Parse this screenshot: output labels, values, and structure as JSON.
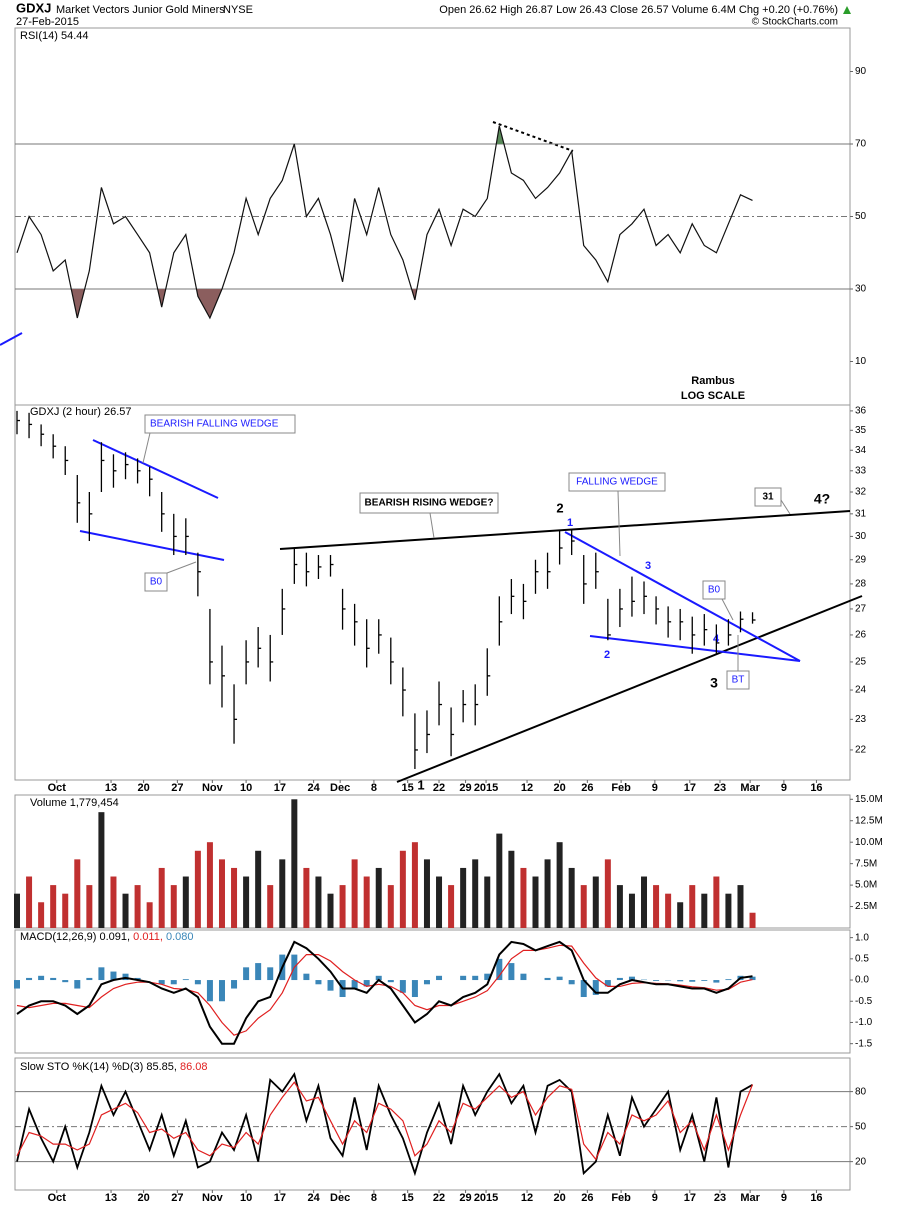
{
  "header": {
    "symbol": "GDXJ",
    "name": "Market Vectors Junior Gold Miners",
    "exchange": "NYSE",
    "date": "27-Feb-2015",
    "quote": "Open 26.62  High 26.87  Low 26.43  Close 26.57  Volume 6.4M  Chg +0.20 (+0.76%)",
    "source": "© StockCharts.com"
  },
  "chart_data": [
    {
      "type": "line",
      "title": "RSI(14) 54.44",
      "annotations": [
        "Rambus",
        "LOG SCALE"
      ],
      "color": "#111111",
      "values": [
        40,
        50,
        45,
        35,
        38,
        22,
        35,
        58,
        48,
        50,
        45,
        40,
        25,
        40,
        45,
        28,
        22,
        30,
        40,
        55,
        45,
        55,
        60,
        70,
        50,
        55,
        45,
        32,
        55,
        45,
        58,
        45,
        38,
        27,
        45,
        52,
        42,
        52,
        50,
        55,
        75,
        62,
        60,
        55,
        58,
        62,
        68,
        42,
        38,
        32,
        45,
        48,
        52,
        42,
        45,
        40,
        48,
        42,
        40,
        48,
        56,
        54.44
      ],
      "xlim": [
        0,
        69
      ],
      "ylim": [
        -2,
        102
      ],
      "yticks": [
        10,
        30,
        50,
        70,
        90
      ],
      "reference_lines": [
        30,
        50,
        70
      ],
      "reference_styles": [
        "solid",
        "dashdot",
        "solid"
      ],
      "overbought_color": "#5a8a5a",
      "oversold_color": "#8b5e5e"
    },
    {
      "type": "hlc",
      "title": "GDXJ (2 hour) 26.57",
      "log_scale": true,
      "color": "#000000",
      "high": [
        36,
        35.9,
        35.3,
        34.8,
        34.2,
        32.8,
        32,
        34.4,
        33.8,
        33.9,
        33.6,
        33.2,
        32,
        31,
        30.8,
        29.3,
        27,
        25.6,
        24.2,
        25.8,
        26.3,
        26,
        27.8,
        29.5,
        29.3,
        29.2,
        29.2,
        27.8,
        27.2,
        26.6,
        26.6,
        25.9,
        24.8,
        23.2,
        23.3,
        24.3,
        23.4,
        24,
        24.2,
        25.5,
        27.5,
        28.2,
        28,
        29,
        29.3,
        30.3,
        30.3,
        29.2,
        29.3,
        27.4,
        27.8,
        28.3,
        28.1,
        27.5,
        27.1,
        27,
        26.7,
        26.8,
        26.4,
        26.6,
        26.9,
        26.87
      ],
      "low": [
        34.8,
        34.6,
        34.2,
        33.6,
        32.8,
        30.6,
        29.8,
        32,
        32.2,
        32.6,
        32.4,
        31.8,
        30.2,
        29.2,
        29.2,
        27.5,
        24.2,
        23.4,
        22.2,
        24.2,
        24.8,
        24.3,
        26,
        28,
        27.9,
        28.2,
        28.3,
        26.2,
        25.6,
        24.8,
        25.3,
        24.2,
        23.1,
        21.4,
        21.9,
        22.8,
        21.8,
        22.9,
        22.8,
        23.8,
        25.6,
        26.8,
        26.6,
        27.6,
        27.8,
        28.8,
        29.2,
        27.2,
        27.8,
        25.8,
        26.3,
        26.7,
        26.8,
        26.4,
        25.9,
        25.8,
        25.3,
        25.6,
        25.3,
        25.6,
        26.1,
        26.43
      ],
      "close": [
        35.5,
        35.3,
        34.8,
        34.2,
        33.5,
        31.5,
        31,
        33.5,
        33,
        33.3,
        33,
        32.6,
        31,
        30,
        30,
        28.5,
        25,
        24.5,
        23,
        25,
        25.5,
        25,
        27,
        28.8,
        28.5,
        28.7,
        28.8,
        27,
        26.5,
        25.5,
        26,
        25,
        24,
        22,
        22.5,
        23.5,
        22.5,
        23.5,
        23.5,
        24.5,
        26.5,
        27.5,
        27.3,
        28.5,
        28.5,
        29.5,
        29.8,
        28,
        28.5,
        26,
        27,
        27.3,
        27.5,
        27,
        26.5,
        26.5,
        26,
        26.2,
        25.7,
        26,
        26.6,
        26.57
      ],
      "xlim": [
        0,
        69
      ],
      "ylim": [
        21.06,
        36.31
      ],
      "yticks": [
        22,
        23,
        24,
        25,
        26,
        27,
        28,
        29,
        30,
        31,
        32,
        33,
        34,
        35,
        36
      ],
      "xticks": [
        {
          "value": 3.3,
          "label": "Oct"
        },
        {
          "value": 7.8,
          "label": "13"
        },
        {
          "value": 10.5,
          "label": "20"
        },
        {
          "value": 13.3,
          "label": "27"
        },
        {
          "value": 16.2,
          "label": "Nov"
        },
        {
          "value": 19,
          "label": "10"
        },
        {
          "value": 21.8,
          "label": "17"
        },
        {
          "value": 24.6,
          "label": "24"
        },
        {
          "value": 26.8,
          "label": "Dec"
        },
        {
          "value": 29.6,
          "label": "8"
        },
        {
          "value": 32.4,
          "label": "15"
        },
        {
          "value": 35,
          "label": "22"
        },
        {
          "value": 37.2,
          "label": "29"
        },
        {
          "value": 38.9,
          "label": "2015"
        },
        {
          "value": 42.3,
          "label": "12"
        },
        {
          "value": 45,
          "label": "20"
        },
        {
          "value": 47.3,
          "label": "26"
        },
        {
          "value": 50.1,
          "label": "Feb"
        },
        {
          "value": 52.9,
          "label": "9"
        },
        {
          "value": 55.8,
          "label": "17"
        },
        {
          "value": 58.3,
          "label": "23"
        },
        {
          "value": 60.8,
          "label": "Mar"
        },
        {
          "value": 63.6,
          "label": "9"
        },
        {
          "value": 66.3,
          "label": "16"
        }
      ],
      "annotations": [
        "BEARISH FALLING WEDGE",
        "B0",
        "BEARISH RISING WEDGE?",
        "FALLING WEDGE",
        "B0",
        "BT",
        "31",
        "4?",
        "2",
        "1",
        "3",
        "2",
        "4",
        "3",
        "1"
      ]
    },
    {
      "type": "bar",
      "title": "Volume 1,779,454",
      "up_color": "#222222",
      "down_color": "#c03030",
      "values": [
        4000000,
        6000000,
        3000000,
        5000000,
        4000000,
        8000000,
        5000000,
        13500000,
        6000000,
        4000000,
        5000000,
        3000000,
        7000000,
        5000000,
        6000000,
        9000000,
        10000000,
        8000000,
        7000000,
        6000000,
        9000000,
        5000000,
        8000000,
        15000000,
        7000000,
        6000000,
        4000000,
        5000000,
        8000000,
        6000000,
        7000000,
        5000000,
        9000000,
        10000000,
        8000000,
        6000000,
        5000000,
        7000000,
        8000000,
        6000000,
        11000000,
        9000000,
        7000000,
        6000000,
        8000000,
        10000000,
        7000000,
        5000000,
        6000000,
        8000000,
        5000000,
        4000000,
        6000000,
        5000000,
        4000000,
        3000000,
        5000000,
        4000000,
        6000000,
        4000000,
        5000000,
        1779454
      ],
      "xlim": [
        0,
        69
      ],
      "ylim": [
        0,
        15500000
      ],
      "yticks": [
        {
          "value": 2500000,
          "label": "2.5M"
        },
        {
          "value": 5000000,
          "label": "5.0M"
        },
        {
          "value": 7500000,
          "label": "7.5M"
        },
        {
          "value": 10000000,
          "label": "10.0M"
        },
        {
          "value": 12500000,
          "label": "12.5M"
        },
        {
          "value": 15000000,
          "label": "15.0M"
        }
      ]
    },
    {
      "type": "macd",
      "title": "MACD(12,26,9)",
      "legend_texts": [
        "0.091,",
        "0.011,",
        "0.080"
      ],
      "macd_color": "#000000",
      "signal_color": "#e02020",
      "histogram_color": "#3a86b8",
      "macd": [
        -0.8,
        -0.6,
        -0.5,
        -0.5,
        -0.6,
        -0.8,
        -0.6,
        -0.1,
        0,
        0.05,
        0,
        -0.05,
        -0.2,
        -0.3,
        -0.2,
        -0.4,
        -1.1,
        -1.5,
        -1.5,
        -0.9,
        -0.5,
        -0.4,
        0.3,
        0.9,
        0.75,
        0.5,
        0.2,
        -0.2,
        -0.2,
        -0.3,
        0,
        -0.2,
        -0.6,
        -1.0,
        -0.8,
        -0.5,
        -0.6,
        -0.4,
        -0.3,
        -0.1,
        0.6,
        0.9,
        0.85,
        0.7,
        0.8,
        0.9,
        0.7,
        0,
        -0.3,
        -0.3,
        -0.1,
        0,
        -0.05,
        -0.1,
        -0.1,
        -0.15,
        -0.2,
        -0.2,
        -0.3,
        -0.2,
        0.05,
        0.091
      ],
      "signal": [
        -0.6,
        -0.65,
        -0.6,
        -0.55,
        -0.55,
        -0.6,
        -0.65,
        -0.4,
        -0.2,
        -0.1,
        -0.05,
        -0.05,
        -0.1,
        -0.2,
        -0.22,
        -0.3,
        -0.6,
        -1.0,
        -1.3,
        -1.2,
        -0.9,
        -0.7,
        -0.3,
        0.3,
        0.6,
        0.6,
        0.45,
        0.2,
        0,
        -0.15,
        -0.1,
        -0.15,
        -0.3,
        -0.6,
        -0.7,
        -0.6,
        -0.6,
        -0.5,
        -0.4,
        -0.25,
        0.1,
        0.5,
        0.7,
        0.7,
        0.75,
        0.82,
        0.8,
        0.4,
        0.05,
        -0.15,
        -0.15,
        -0.08,
        -0.06,
        -0.08,
        -0.09,
        -0.12,
        -0.16,
        -0.18,
        -0.24,
        -0.22,
        -0.05,
        0.011
      ],
      "histogram": [
        -0.2,
        0.05,
        0.1,
        0.05,
        -0.05,
        -0.2,
        0.05,
        0.3,
        0.2,
        0.15,
        0.05,
        0,
        -0.1,
        -0.1,
        0.02,
        -0.1,
        -0.5,
        -0.5,
        -0.2,
        0.3,
        0.4,
        0.3,
        0.6,
        0.6,
        0.15,
        -0.1,
        -0.25,
        -0.4,
        -0.2,
        -0.15,
        0.1,
        -0.05,
        -0.3,
        -0.4,
        -0.1,
        0.1,
        0,
        0.1,
        0.1,
        0.15,
        0.5,
        0.4,
        0.15,
        0,
        0.05,
        0.08,
        -0.1,
        -0.4,
        -0.35,
        -0.15,
        0.05,
        0.08,
        0.01,
        -0.02,
        -0.01,
        -0.03,
        -0.04,
        -0.02,
        -0.06,
        0.02,
        0.1,
        0.08
      ],
      "xlim": [
        0,
        69
      ],
      "ylim": [
        -1.72,
        1.18
      ],
      "yticks": [
        {
          "value": 1,
          "label": "1.0"
        },
        0.5,
        {
          "value": 0,
          "label": "0.0"
        },
        -0.5,
        {
          "value": -1,
          "label": "-1.0"
        },
        -1.5
      ]
    },
    {
      "type": "stochastic",
      "title": "Slow STO %K(14) %D(3)",
      "legend_texts": [
        "85.85,",
        "86.08"
      ],
      "k_color": "#000000",
      "d_color": "#e02020",
      "k": [
        20,
        65,
        40,
        20,
        50,
        15,
        45,
        85,
        60,
        80,
        55,
        30,
        60,
        25,
        55,
        15,
        20,
        45,
        30,
        60,
        20,
        90,
        80,
        95,
        55,
        85,
        40,
        25,
        75,
        30,
        85,
        60,
        40,
        10,
        45,
        70,
        35,
        85,
        60,
        80,
        95,
        70,
        85,
        45,
        85,
        90,
        80,
        10,
        20,
        60,
        25,
        75,
        50,
        65,
        80,
        30,
        60,
        20,
        75,
        15,
        80,
        85.85
      ],
      "d": [
        25,
        45,
        42,
        35,
        35,
        30,
        35,
        60,
        65,
        70,
        62,
        45,
        48,
        40,
        45,
        30,
        25,
        35,
        32,
        45,
        35,
        60,
        75,
        88,
        72,
        75,
        55,
        35,
        55,
        45,
        70,
        65,
        55,
        25,
        35,
        55,
        45,
        70,
        65,
        75,
        85,
        75,
        80,
        60,
        75,
        85,
        82,
        35,
        22,
        45,
        35,
        60,
        55,
        60,
        72,
        45,
        55,
        30,
        60,
        30,
        60,
        86.08
      ],
      "xlim": [
        0,
        69
      ],
      "ylim": [
        -4.3,
        108.8
      ],
      "yticks": [
        20,
        50,
        80
      ],
      "reference_lines": [
        20,
        50,
        80
      ],
      "reference_styles": [
        "solid",
        "dashdot",
        "solid"
      ],
      "xticks": [
        {
          "value": 3.3,
          "label": "Oct"
        },
        {
          "value": 7.8,
          "label": "13"
        },
        {
          "value": 10.5,
          "label": "20"
        },
        {
          "value": 13.3,
          "label": "27"
        },
        {
          "value": 16.2,
          "label": "Nov"
        },
        {
          "value": 19,
          "label": "10"
        },
        {
          "value": 21.8,
          "label": "17"
        },
        {
          "value": 24.6,
          "label": "24"
        },
        {
          "value": 26.8,
          "label": "Dec"
        },
        {
          "value": 29.6,
          "label": "8"
        },
        {
          "value": 32.4,
          "label": "15"
        },
        {
          "value": 35,
          "label": "22"
        },
        {
          "value": 37.2,
          "label": "29"
        },
        {
          "value": 38.9,
          "label": "2015"
        },
        {
          "value": 42.3,
          "label": "12"
        },
        {
          "value": 45,
          "label": "20"
        },
        {
          "value": 47.3,
          "label": "26"
        },
        {
          "value": 50.1,
          "label": "Feb"
        },
        {
          "value": 52.9,
          "label": "9"
        },
        {
          "value": 55.8,
          "label": "17"
        },
        {
          "value": 58.3,
          "label": "23"
        },
        {
          "value": 60.8,
          "label": "Mar"
        },
        {
          "value": 63.6,
          "label": "9"
        },
        {
          "value": 66.3,
          "label": "16"
        }
      ]
    }
  ]
}
